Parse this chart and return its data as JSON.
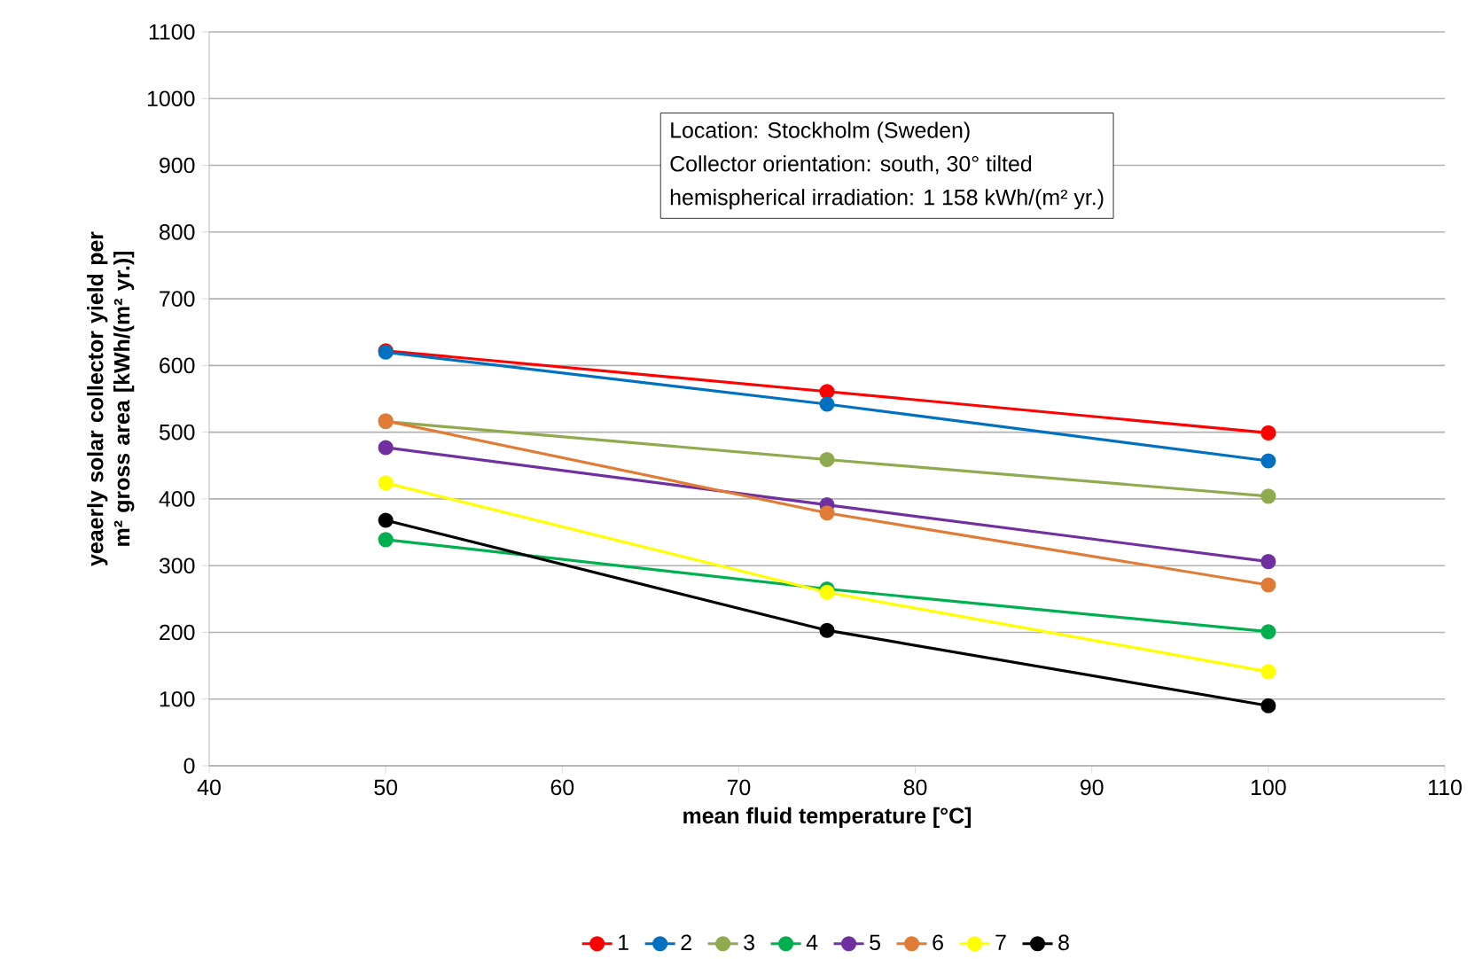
{
  "chart_data": {
    "type": "line",
    "xlabel": "mean fluid temperature [°C]",
    "ylabel": "yeaerly solar collector yield per m² gross area [kWh/(m² yr.)]",
    "x": [
      50,
      75,
      100
    ],
    "xlim": [
      40,
      110
    ],
    "xticks": [
      40,
      50,
      60,
      70,
      80,
      90,
      100,
      110
    ],
    "ylim": [
      0,
      1100
    ],
    "yticks": [
      0,
      100,
      200,
      300,
      400,
      500,
      600,
      700,
      800,
      900,
      1000,
      1100
    ],
    "grid": "y",
    "legend": "bottom",
    "marker": "circle",
    "line_style": "solid",
    "annotations": [
      "Location: Stockholm (Sweden)",
      "Collector orientation: south, 30° tilted",
      "hemispherical irradiation: 1 158 kWh/(m² yr.)"
    ],
    "series": [
      {
        "name": "1",
        "color": "#ff0000",
        "values": [
          622,
          561,
          499
        ]
      },
      {
        "name": "2",
        "color": "#0070c0",
        "values": [
          620,
          542,
          457
        ]
      },
      {
        "name": "3",
        "color": "#8faa4f",
        "values": [
          516,
          459,
          404
        ]
      },
      {
        "name": "4",
        "color": "#00b050",
        "values": [
          339,
          265,
          201
        ]
      },
      {
        "name": "5",
        "color": "#7030a0",
        "values": [
          477,
          391,
          306
        ]
      },
      {
        "name": "6",
        "color": "#e07c36",
        "values": [
          517,
          379,
          271
        ]
      },
      {
        "name": "7",
        "color": "#ffff00",
        "values": [
          424,
          260,
          141
        ]
      },
      {
        "name": "8",
        "color": "#000000",
        "values": [
          368,
          203,
          90
        ]
      }
    ]
  }
}
